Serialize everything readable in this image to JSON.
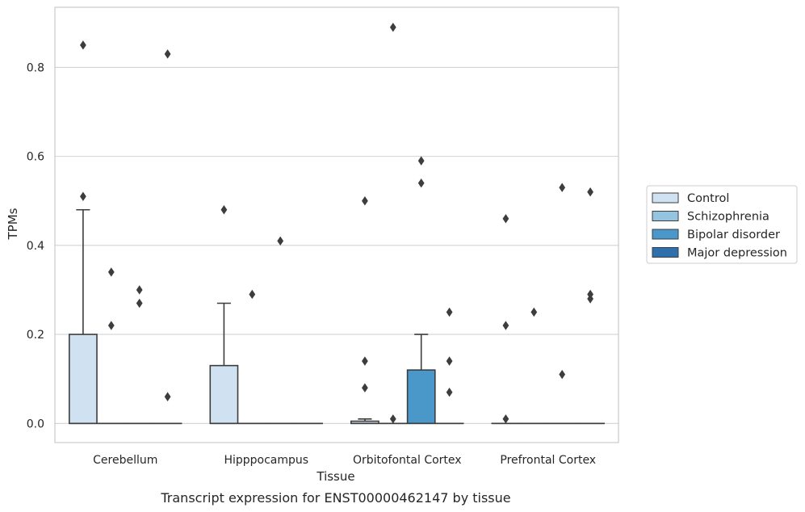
{
  "chart_data": {
    "type": "box",
    "title": "",
    "caption": "Transcript expression for ENST00000462147 by tissue",
    "xlabel": "Tissue",
    "ylabel": "TPMs",
    "ylim": [
      -0.043,
      0.935
    ],
    "yticks": [
      0.0,
      0.2,
      0.4,
      0.6,
      0.8
    ],
    "ytick_labels": [
      "0.0",
      "0.2",
      "0.4",
      "0.6",
      "0.8"
    ],
    "grid": "horizontal",
    "legend_position": "right",
    "categories": [
      "Cerebellum",
      "Hipppocampus",
      "Orbitofontal Cortex",
      "Prefrontal Cortex"
    ],
    "series": [
      {
        "name": "Control",
        "color": "#d0e1f2",
        "boxes": [
          {
            "q1": 0.0,
            "median": 0.0,
            "q3": 0.2,
            "whisker_low": 0.0,
            "whisker_high": 0.48,
            "outliers": [
              0.51,
              0.85
            ]
          },
          {
            "q1": 0.0,
            "median": 0.0,
            "q3": 0.13,
            "whisker_low": 0.0,
            "whisker_high": 0.27,
            "outliers": [
              0.48
            ]
          },
          {
            "q1": 0.0,
            "median": 0.0,
            "q3": 0.005,
            "whisker_low": 0.0,
            "whisker_high": 0.01,
            "outliers": [
              0.08,
              0.14,
              0.5
            ]
          },
          {
            "q1": 0.0,
            "median": 0.0,
            "q3": 0.0,
            "whisker_low": 0.0,
            "whisker_high": 0.0,
            "outliers": [
              0.01,
              0.22,
              0.46
            ]
          }
        ]
      },
      {
        "name": "Schizophrenia",
        "color": "#94c4df",
        "boxes": [
          {
            "q1": 0.0,
            "median": 0.0,
            "q3": 0.0,
            "whisker_low": 0.0,
            "whisker_high": 0.0,
            "outliers": [
              0.22,
              0.34
            ]
          },
          {
            "q1": 0.0,
            "median": 0.0,
            "q3": 0.0,
            "whisker_low": 0.0,
            "whisker_high": 0.0,
            "outliers": [
              0.29
            ]
          },
          {
            "q1": 0.0,
            "median": 0.0,
            "q3": 0.0,
            "whisker_low": 0.0,
            "whisker_high": 0.0,
            "outliers": [
              0.01,
              0.89
            ]
          },
          {
            "q1": 0.0,
            "median": 0.0,
            "q3": 0.0,
            "whisker_low": 0.0,
            "whisker_high": 0.0,
            "outliers": [
              0.25
            ]
          }
        ]
      },
      {
        "name": "Bipolar disorder",
        "color": "#4a98c9",
        "boxes": [
          {
            "q1": 0.0,
            "median": 0.0,
            "q3": 0.0,
            "whisker_low": 0.0,
            "whisker_high": 0.0,
            "outliers": [
              0.27,
              0.3
            ]
          },
          {
            "q1": 0.0,
            "median": 0.0,
            "q3": 0.0,
            "whisker_low": 0.0,
            "whisker_high": 0.0,
            "outliers": [
              0.41
            ]
          },
          {
            "q1": 0.0,
            "median": 0.0,
            "q3": 0.12,
            "whisker_low": 0.0,
            "whisker_high": 0.2,
            "outliers": [
              0.54,
              0.59
            ]
          },
          {
            "q1": 0.0,
            "median": 0.0,
            "q3": 0.0,
            "whisker_low": 0.0,
            "whisker_high": 0.0,
            "outliers": [
              0.11,
              0.53
            ]
          }
        ]
      },
      {
        "name": "Major depression",
        "color": "#2e6fae",
        "boxes": [
          {
            "q1": 0.0,
            "median": 0.0,
            "q3": 0.0,
            "whisker_low": 0.0,
            "whisker_high": 0.0,
            "outliers": [
              0.06,
              0.83
            ]
          },
          {
            "q1": 0.0,
            "median": 0.0,
            "q3": 0.0,
            "whisker_low": 0.0,
            "whisker_high": 0.0,
            "outliers": []
          },
          {
            "q1": 0.0,
            "median": 0.0,
            "q3": 0.0,
            "whisker_low": 0.0,
            "whisker_high": 0.0,
            "outliers": [
              0.07,
              0.14,
              0.25
            ]
          },
          {
            "q1": 0.0,
            "median": 0.0,
            "q3": 0.0,
            "whisker_low": 0.0,
            "whisker_high": 0.0,
            "outliers": [
              0.28,
              0.29,
              0.52
            ]
          }
        ]
      }
    ]
  }
}
